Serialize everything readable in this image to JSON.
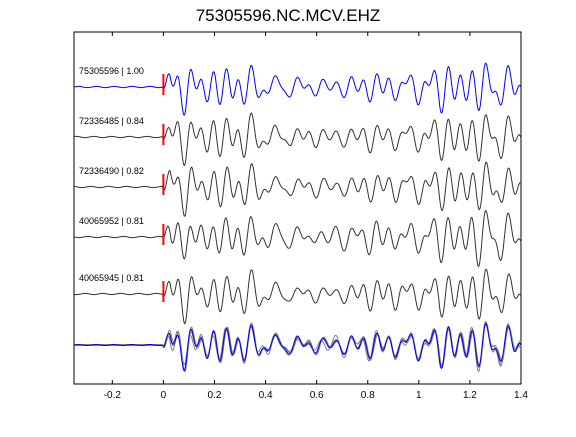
{
  "chart_data": {
    "type": "line",
    "title": "75305596.NC.MCV.EHZ",
    "xlabel": "",
    "ylabel": "",
    "xlim": [
      -0.35,
      1.4
    ],
    "xticks": [
      -0.2,
      0,
      0.2,
      0.4,
      0.6,
      0.8,
      1,
      1.2,
      1.4
    ],
    "xtick_labels": [
      "-0.2",
      "0",
      "0.2",
      "0.4",
      "0.6",
      "0.8",
      "1",
      "1.2",
      "1.4"
    ],
    "grid": false,
    "pick_time": 0,
    "colors": {
      "reference": "#0000ff",
      "trace": "#333333",
      "stack": "#808080",
      "pick": "#ff0000",
      "axes": "#000000"
    },
    "series": [
      {
        "name": "75305596 | 1.00",
        "label": "75305596 | 1.00",
        "color": "#0000ff",
        "wave": 0
      },
      {
        "name": "72336485 | 0.84",
        "label": "72336485 | 0.84",
        "color": "#333333",
        "wave": 1
      },
      {
        "name": "72336490 | 0.82",
        "label": "72336490 | 0.82",
        "color": "#333333",
        "wave": 2
      },
      {
        "name": "40065952 | 0.81",
        "label": "40065952 | 0.81",
        "color": "#333333",
        "wave": 3
      },
      {
        "name": "40065945 | 0.81",
        "label": "40065945 | 0.81",
        "color": "#333333",
        "wave": 4
      }
    ],
    "stack": {
      "overlay_of": [
        "72336485 | 0.84",
        "72336490 | 0.82",
        "40065952 | 0.81",
        "40065945 | 0.81",
        "75305596 | 1.00"
      ]
    }
  }
}
